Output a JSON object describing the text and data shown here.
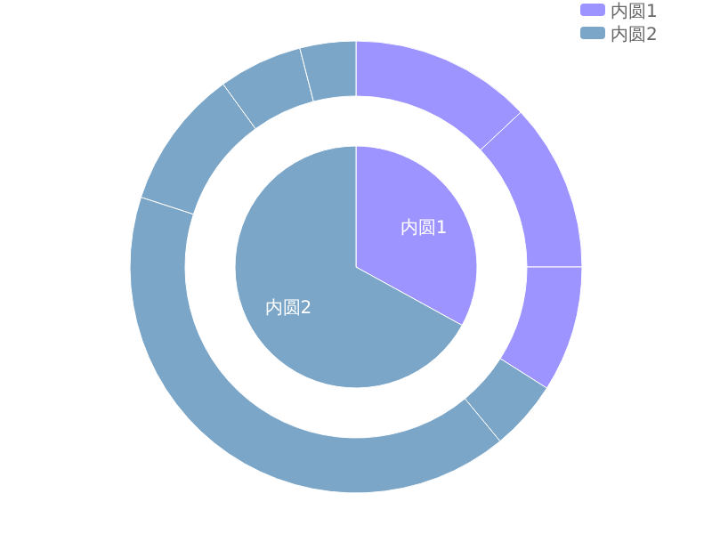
{
  "chart_data": [
    {
      "type": "pie",
      "categories": [
        "内圆1",
        "内圆2"
      ],
      "values": [
        33,
        67
      ],
      "colors": [
        "#9d94ff",
        "#7ba6c8"
      ],
      "legend": "top right"
    },
    {
      "type": "donut",
      "categories": [
        null,
        null,
        null,
        null,
        null,
        null,
        null,
        null
      ],
      "values": [
        13,
        12,
        9,
        5,
        41,
        10,
        6,
        4
      ],
      "colors": [
        "#9d94ff",
        "#9d94ff",
        "#9d94ff",
        "#7ba6c8",
        "#7ba6c8",
        "#7ba6c8",
        "#7ba6c8",
        "#7ba6c8"
      ]
    }
  ]
}
